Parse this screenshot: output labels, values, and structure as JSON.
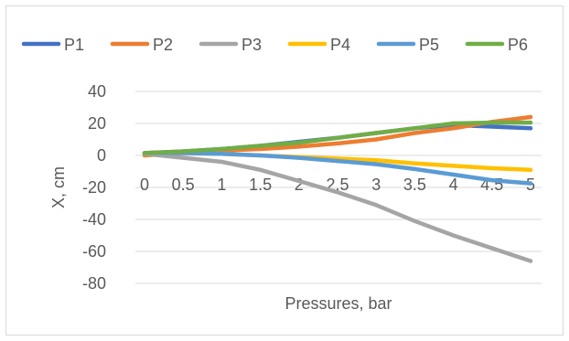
{
  "chart_data": {
    "type": "line",
    "title": "",
    "xlabel": "Pressures, bar",
    "ylabel": "X, cm",
    "categories": [
      "0",
      "0.5",
      "1",
      "1.5",
      "2",
      "2.5",
      "3",
      "3.5",
      "4",
      "4.5",
      "5"
    ],
    "x": [
      0,
      0.5,
      1,
      1.5,
      2,
      2.5,
      3,
      3.5,
      4,
      4.5,
      5
    ],
    "yticks": [
      40,
      20,
      0,
      -20,
      -40,
      -60,
      -80
    ],
    "ylim": [
      -80,
      40
    ],
    "grid": true,
    "legend_position": "top",
    "series": [
      {
        "name": "P1",
        "color": "#4472C4",
        "values": [
          1.5,
          2.5,
          4,
          6,
          8.5,
          11,
          14,
          17,
          19,
          18,
          17
        ]
      },
      {
        "name": "P2",
        "color": "#ED7D31",
        "values": [
          0,
          1.5,
          3,
          4,
          5.5,
          7.5,
          10,
          14,
          17,
          21,
          24
        ]
      },
      {
        "name": "P3",
        "color": "#A5A5A5",
        "values": [
          1,
          -1.5,
          -4,
          -9,
          -16,
          -23,
          -31,
          -41,
          -50,
          -58,
          -66
        ]
      },
      {
        "name": "P4",
        "color": "#FFC000",
        "values": [
          1.5,
          1.5,
          1,
          0,
          -1,
          -2,
          -3,
          -5,
          -6.5,
          -8,
          -9
        ]
      },
      {
        "name": "P5",
        "color": "#5B9BD5",
        "values": [
          1.5,
          1.5,
          1,
          0,
          -1.5,
          -3.5,
          -5.5,
          -8.5,
          -12,
          -15.5,
          -17.5
        ]
      },
      {
        "name": "P6",
        "color": "#70AD47",
        "values": [
          1.5,
          2.5,
          4,
          6,
          8,
          11,
          14,
          17,
          20,
          20.5,
          20.5
        ]
      }
    ]
  }
}
